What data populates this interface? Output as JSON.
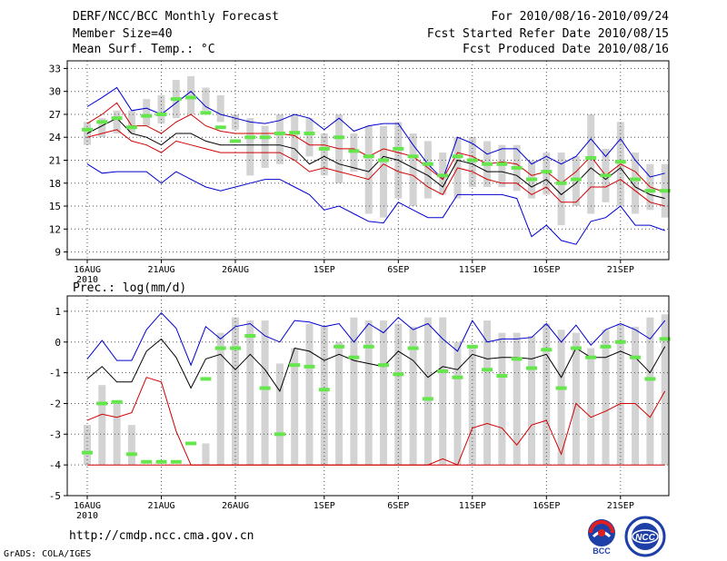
{
  "header": {
    "title": "DERF/NCC/BCC Monthly Forecast",
    "member_size": "Member Size=40",
    "variable": "Mean Surf. Temp.: °C",
    "forecast_period": "For 2010/08/16-2010/09/24",
    "started_refer": "Fcst Started Refer Date 2010/08/15",
    "produced": "Fcst Produced Date 2010/08/16"
  },
  "footer": {
    "url": "http://cmdp.ncc.cma.gov.cn",
    "grads": "GrADS: COLA/IGES",
    "logo_bcc": "BCC",
    "logo_ncc": "NCC"
  },
  "colors": {
    "box": "#d3d3d3",
    "green": "#66e64d",
    "blue": "#0000d0",
    "red": "#d00000",
    "black": "#000000",
    "grid": "#555555"
  },
  "chart_data": [
    {
      "type": "box-ensemble",
      "title": "Mean Surf. Temp.: °C",
      "x_labels": [
        {
          "day": 0,
          "text": "16AUG"
        },
        {
          "day": 5,
          "text": "21AUG"
        },
        {
          "day": 10,
          "text": "26AUG"
        },
        {
          "day": 16,
          "text": "1SEP"
        },
        {
          "day": 21,
          "text": "6SEP"
        },
        {
          "day": 26,
          "text": "11SEP"
        },
        {
          "day": 31,
          "text": "16SEP"
        },
        {
          "day": 36,
          "text": "21SEP"
        }
      ],
      "year_label": "2010",
      "ylim": [
        8,
        34
      ],
      "yticks": [
        9,
        12,
        15,
        18,
        21,
        24,
        27,
        30,
        33
      ],
      "box_low": [
        23.0,
        24.0,
        24.5,
        24.5,
        25.5,
        25.8,
        26.5,
        27.0,
        27.5,
        26.0,
        25.0,
        19.0,
        20.0,
        20.5,
        21.0,
        21.5,
        19.0,
        18.0,
        19.5,
        14.0,
        13.5,
        16.0,
        15.0,
        16.0,
        16.5,
        16.0,
        17.5,
        17.5,
        17.5,
        17.0,
        16.0,
        16.5,
        12.5,
        15.0,
        14.0,
        15.5,
        15.0,
        14.0,
        14.5,
        13.5
      ],
      "box_high": [
        26.0,
        26.5,
        27.5,
        27.5,
        29.0,
        29.5,
        31.5,
        32.0,
        30.5,
        29.5,
        27.0,
        26.5,
        25.5,
        27.0,
        27.0,
        26.5,
        24.5,
        27.0,
        24.5,
        25.5,
        25.5,
        26.0,
        24.5,
        23.5,
        22.0,
        24.0,
        24.0,
        23.5,
        23.0,
        23.0,
        21.0,
        22.0,
        22.0,
        21.5,
        27.0,
        22.5,
        26.0,
        22.0,
        20.5,
        20.5
      ],
      "ensemble_mean_green": [
        25.0,
        26.0,
        26.5,
        25.3,
        26.8,
        27.0,
        29.0,
        29.2,
        27.2,
        25.3,
        23.5,
        24.0,
        24.0,
        24.5,
        24.6,
        24.5,
        22.5,
        24.0,
        22.2,
        21.5,
        21.0,
        22.5,
        21.5,
        20.5,
        19.0,
        21.5,
        21.0,
        20.5,
        20.5,
        20.0,
        18.5,
        19.5,
        18.0,
        18.5,
        21.3,
        19.0,
        20.8,
        18.5,
        17.0,
        17.0
      ],
      "series": [
        {
          "name": "max",
          "color": "blue",
          "values": [
            28.0,
            29.2,
            30.5,
            27.5,
            27.8,
            27.0,
            28.5,
            30.0,
            28.0,
            27.0,
            26.5,
            26.0,
            25.8,
            26.2,
            27.0,
            26.5,
            25.0,
            26.5,
            24.8,
            25.5,
            25.8,
            25.8,
            23.0,
            20.5,
            18.5,
            24.0,
            23.2,
            21.8,
            22.5,
            22.5,
            20.5,
            21.5,
            20.5,
            21.5,
            23.8,
            21.5,
            23.8,
            21.0,
            18.8,
            19.3
          ]
        },
        {
          "name": "upper",
          "color": "red",
          "values": [
            25.8,
            27.0,
            28.5,
            25.5,
            25.5,
            24.5,
            26.0,
            27.0,
            25.5,
            24.8,
            24.5,
            24.5,
            24.5,
            24.5,
            24.2,
            23.0,
            23.0,
            22.5,
            22.5,
            21.5,
            22.5,
            22.0,
            21.5,
            20.0,
            18.5,
            22.0,
            21.5,
            20.5,
            20.8,
            20.5,
            19.0,
            19.5,
            18.0,
            19.5,
            21.5,
            19.0,
            20.5,
            19.5,
            17.5,
            16.8
          ]
        },
        {
          "name": "mean",
          "color": "black",
          "values": [
            24.5,
            25.5,
            26.5,
            24.5,
            24.0,
            23.0,
            24.5,
            24.5,
            23.5,
            23.0,
            23.0,
            23.0,
            23.0,
            23.0,
            22.5,
            20.5,
            21.5,
            20.5,
            20.0,
            19.5,
            21.5,
            21.0,
            20.0,
            19.0,
            17.5,
            21.0,
            20.5,
            19.5,
            19.5,
            19.0,
            17.5,
            18.5,
            16.5,
            18.0,
            20.0,
            18.5,
            20.0,
            17.5,
            16.5,
            16.0
          ]
        },
        {
          "name": "lower",
          "color": "red",
          "values": [
            24.0,
            24.5,
            25.0,
            23.5,
            23.0,
            22.0,
            23.5,
            23.0,
            22.5,
            22.0,
            22.0,
            22.0,
            22.0,
            22.0,
            21.0,
            19.5,
            20.0,
            19.5,
            19.0,
            18.5,
            20.5,
            19.5,
            19.0,
            17.5,
            16.5,
            20.0,
            19.5,
            18.5,
            18.0,
            18.0,
            16.5,
            17.5,
            15.5,
            15.5,
            17.5,
            17.5,
            18.5,
            17.0,
            15.5,
            15.0
          ]
        },
        {
          "name": "min",
          "color": "blue",
          "values": [
            20.5,
            19.3,
            19.5,
            19.5,
            19.5,
            18.0,
            19.5,
            18.5,
            17.5,
            17.0,
            17.5,
            18.0,
            18.5,
            18.5,
            17.5,
            16.5,
            14.5,
            15.0,
            14.0,
            13.0,
            12.8,
            15.5,
            14.5,
            13.5,
            13.5,
            16.5,
            16.5,
            16.5,
            16.5,
            16.0,
            11.0,
            12.5,
            10.5,
            10.0,
            13.0,
            13.5,
            15.0,
            12.5,
            12.5,
            11.8
          ]
        }
      ]
    },
    {
      "type": "box-ensemble",
      "title": "Prec.: log(mm/d)",
      "x_labels": [
        {
          "day": 0,
          "text": "16AUG"
        },
        {
          "day": 5,
          "text": "21AUG"
        },
        {
          "day": 10,
          "text": "26AUG"
        },
        {
          "day": 16,
          "text": "1SEP"
        },
        {
          "day": 21,
          "text": "6SEP"
        },
        {
          "day": 26,
          "text": "11SEP"
        },
        {
          "day": 31,
          "text": "16SEP"
        },
        {
          "day": 36,
          "text": "21SEP"
        }
      ],
      "year_label": "2010",
      "ylim": [
        -5,
        1.5
      ],
      "yticks": [
        -5,
        -4,
        -3,
        -2,
        -1,
        0,
        1
      ],
      "box_low": [
        -4.0,
        -4.0,
        -4.0,
        -4.0,
        -4.0,
        -4.0,
        -4.0,
        -4.0,
        -4.0,
        -4.0,
        -4.0,
        -4.0,
        -4.0,
        -4.0,
        -4.0,
        -4.0,
        -4.0,
        -4.0,
        -4.0,
        -4.0,
        -4.0,
        -4.0,
        -4.0,
        -4.0,
        -4.0,
        -4.0,
        -4.0,
        -4.0,
        -4.0,
        -4.0,
        -4.0,
        -4.0,
        -4.0,
        -4.0,
        -4.0,
        -4.0,
        -4.0,
        -4.0,
        -4.0,
        -4.0
      ],
      "box_high": [
        -2.7,
        -1.4,
        -1.9,
        -2.7,
        -4.0,
        -4.0,
        -4.0,
        -4.0,
        -3.3,
        0.3,
        0.8,
        0.7,
        0.7,
        -0.7,
        -0.2,
        0.6,
        0.5,
        0.0,
        0.8,
        0.7,
        0.7,
        0.6,
        0.5,
        0.8,
        0.8,
        0.0,
        -0.2,
        0.7,
        0.3,
        0.3,
        0.2,
        0.6,
        0.4,
        0.3,
        -0.2,
        0.4,
        0.6,
        0.5,
        0.8,
        0.9
      ],
      "ensemble_mean_green": [
        -3.6,
        -2.0,
        -1.95,
        -3.65,
        -3.9,
        -3.9,
        -3.9,
        -3.3,
        -1.2,
        -0.2,
        -0.2,
        0.2,
        -1.5,
        -3.0,
        -0.75,
        -0.8,
        -1.55,
        -0.15,
        -0.5,
        -0.15,
        -0.75,
        -1.05,
        -0.2,
        -1.85,
        -0.95,
        -1.15,
        -0.15,
        -0.9,
        -1.1,
        -0.55,
        -0.85,
        -0.25,
        -1.5,
        -0.2,
        -0.5,
        -0.15,
        0.0,
        -0.5,
        -1.2,
        0.1
      ],
      "series": [
        {
          "name": "max",
          "color": "blue",
          "values": [
            -0.55,
            0.05,
            -0.6,
            -0.6,
            0.4,
            0.95,
            0.45,
            -0.75,
            0.5,
            0.1,
            0.5,
            0.6,
            0.2,
            0.0,
            0.7,
            0.65,
            0.5,
            0.6,
            0.0,
            0.6,
            0.3,
            0.8,
            0.4,
            0.6,
            0.1,
            -0.3,
            0.7,
            0.0,
            0.1,
            0.1,
            0.15,
            0.6,
            0.0,
            0.55,
            -0.1,
            0.4,
            0.6,
            0.4,
            0.1,
            0.7
          ]
        },
        {
          "name": "mean",
          "color": "black",
          "values": [
            -1.2,
            -0.8,
            -1.3,
            -1.3,
            -0.3,
            0.1,
            -0.5,
            -1.5,
            -0.55,
            -0.4,
            -0.9,
            -0.4,
            -0.9,
            -1.6,
            -0.2,
            -0.3,
            -0.6,
            -0.4,
            -0.6,
            -0.7,
            -0.8,
            -0.3,
            -0.6,
            -1.15,
            -0.8,
            -0.9,
            -0.4,
            -0.55,
            -0.5,
            -0.5,
            -0.55,
            -0.4,
            -1.15,
            -0.2,
            -0.5,
            -0.5,
            -0.3,
            -0.5,
            -1.0,
            -0.15
          ]
        },
        {
          "name": "upper",
          "color": "red",
          "values": [
            -2.55,
            -2.35,
            -2.45,
            -2.3,
            -1.15,
            -1.3,
            -2.9,
            -4.0,
            -4.0,
            -4.0,
            -4.0,
            -4.0,
            -4.0,
            -4.0,
            -4.0,
            -4.0,
            -4.0,
            -4.0,
            -4.0,
            -4.0,
            -4.0,
            -4.0,
            -4.0,
            -4.0,
            -3.8,
            -4.0,
            -2.8,
            -2.65,
            -2.8,
            -3.35,
            -2.7,
            -2.55,
            -3.65,
            -2.0,
            -2.45,
            -2.25,
            -2.0,
            -2.0,
            -2.45,
            -1.6
          ]
        },
        {
          "name": "floor",
          "color": "red",
          "values": [
            -4.0,
            -4.0,
            -4.0,
            -4.0,
            -4.0,
            -4.0,
            -4.0,
            -4.0,
            -4.0,
            -4.0,
            -4.0,
            -4.0,
            -4.0,
            -4.0,
            -4.0,
            -4.0,
            -4.0,
            -4.0,
            -4.0,
            -4.0,
            -4.0,
            -4.0,
            -4.0,
            -4.0,
            -4.0,
            -4.0,
            -4.0,
            -4.0,
            -4.0,
            -4.0,
            -4.0,
            -4.0,
            -4.0,
            -4.0,
            -4.0,
            -4.0,
            -4.0,
            -4.0,
            -4.0,
            -4.0
          ]
        }
      ]
    }
  ]
}
